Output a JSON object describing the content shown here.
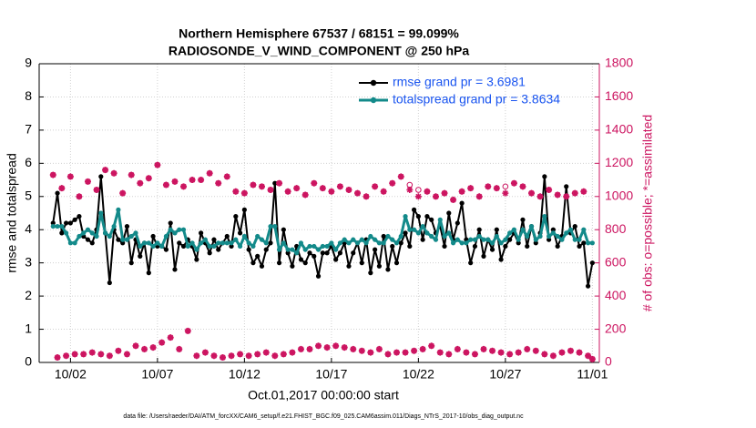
{
  "chart_data": {
    "type": "line",
    "title": "Northern Hemisphere 67537 / 68151 = 99.099%",
    "subtitle": "RADIOSONDE_V_WIND_COMPONENT @ 250 hPa",
    "xlabel": "Oct.01,2017 00:00:00 start",
    "ylabel": "rmse and totalspread",
    "y2label": "# of obs: o=possible; *=assimilated",
    "footnote": "data file: /Users/raeder/DAI/ATM_forcXX/CAM6_setup/f.e21.FHIST_BGC.f09_025.CAM6assim.011/Diags_NTrS_2017-10/obs_diag_output.nc",
    "xlim": [
      -0.8,
      31.4
    ],
    "xticks": [
      {
        "value": 1,
        "label": "10/02"
      },
      {
        "value": 6,
        "label": "10/07"
      },
      {
        "value": 11,
        "label": "10/12"
      },
      {
        "value": 16,
        "label": "10/17"
      },
      {
        "value": 21,
        "label": "10/22"
      },
      {
        "value": 26,
        "label": "10/27"
      },
      {
        "value": 31,
        "label": "11/01"
      }
    ],
    "ylim": [
      0,
      9
    ],
    "yticks": [
      0,
      1,
      2,
      3,
      4,
      5,
      6,
      7,
      8,
      9
    ],
    "y2lim": [
      0,
      1800
    ],
    "y2ticks": [
      0,
      200,
      400,
      600,
      800,
      1000,
      1200,
      1400,
      1600,
      1800
    ],
    "y2color": "#cc1460",
    "grid": true,
    "legend": "upper right",
    "x": [
      0,
      0.25,
      0.5,
      0.75,
      1,
      1.25,
      1.5,
      1.75,
      2,
      2.25,
      2.5,
      2.75,
      3,
      3.25,
      3.5,
      3.75,
      4,
      4.25,
      4.5,
      4.75,
      5,
      5.25,
      5.5,
      5.75,
      6,
      6.25,
      6.5,
      6.75,
      7,
      7.25,
      7.5,
      7.75,
      8,
      8.25,
      8.5,
      8.75,
      9,
      9.25,
      9.5,
      9.75,
      10,
      10.25,
      10.5,
      10.75,
      11,
      11.25,
      11.5,
      11.75,
      12,
      12.25,
      12.5,
      12.75,
      13,
      13.25,
      13.5,
      13.75,
      14,
      14.25,
      14.5,
      14.75,
      15,
      15.25,
      15.5,
      15.75,
      16,
      16.25,
      16.5,
      16.75,
      17,
      17.25,
      17.5,
      17.75,
      18,
      18.25,
      18.5,
      18.75,
      19,
      19.25,
      19.5,
      19.75,
      20,
      20.25,
      20.5,
      20.75,
      21,
      21.25,
      21.5,
      21.75,
      22,
      22.25,
      22.5,
      22.75,
      23,
      23.25,
      23.5,
      23.75,
      24,
      24.25,
      24.5,
      24.75,
      25,
      25.25,
      25.5,
      25.75,
      26,
      26.25,
      26.5,
      26.75,
      27,
      27.25,
      27.5,
      27.75,
      28,
      28.25,
      28.5,
      28.75,
      29,
      29.25,
      29.5,
      29.75,
      30,
      30.25,
      30.5,
      30.75,
      31
    ],
    "series": [
      {
        "name": "rmse grand pr = 3.6981",
        "color": "#000000",
        "marker": "dot",
        "legend_color": "#1a55f0",
        "values": [
          4.2,
          5.1,
          3.9,
          4.2,
          4.2,
          4.3,
          4.4,
          3.8,
          3.7,
          3.6,
          4.0,
          5.6,
          3.9,
          2.4,
          4.0,
          3.7,
          3.6,
          4.1,
          3.0,
          3.7,
          3.2,
          3.6,
          2.7,
          3.8,
          3.5,
          3.5,
          3.4,
          4.2,
          2.8,
          3.6,
          3.5,
          3.7,
          3.5,
          3.1,
          3.9,
          3.6,
          3.3,
          3.7,
          3.4,
          3.6,
          3.8,
          3.5,
          4.4,
          3.9,
          4.6,
          3.4,
          3.0,
          3.2,
          2.9,
          3.4,
          3.6,
          5.4,
          3.0,
          4.0,
          3.3,
          2.9,
          3.5,
          3.1,
          3.0,
          3.3,
          3.2,
          2.6,
          3.3,
          3.3,
          3.5,
          3.1,
          3.3,
          3.6,
          2.9,
          3.3,
          3.6,
          3.0,
          3.7,
          2.7,
          3.4,
          2.9,
          3.8,
          2.8,
          3.5,
          3.0,
          3.6,
          3.9,
          3.5,
          4.6,
          4.4,
          3.7,
          4.4,
          4.3,
          3.9,
          4.1,
          3.5,
          4.5,
          3.7,
          4.2,
          4.8,
          3.7,
          3.0,
          3.5,
          4.0,
          3.2,
          3.7,
          3.4,
          4.0,
          3.1,
          3.5,
          3.7,
          3.9,
          3.6,
          4.3,
          3.5,
          4.1,
          3.6,
          3.9,
          5.6,
          3.7,
          4.0,
          3.5,
          3.8,
          5.3,
          3.9,
          4.1,
          3.5,
          3.6,
          2.3,
          3.0
        ]
      },
      {
        "name": "totalspread grand pr = 3.8634",
        "color": "#138a8a",
        "marker": "dot",
        "legend_color": "#1a55f0",
        "values": [
          4.1,
          4.1,
          4.1,
          3.9,
          3.6,
          3.6,
          3.8,
          3.9,
          4.0,
          3.9,
          3.8,
          4.5,
          3.9,
          3.8,
          4.1,
          4.6,
          3.7,
          3.7,
          3.8,
          3.9,
          3.5,
          3.6,
          3.6,
          3.5,
          3.6,
          3.5,
          3.8,
          4.0,
          3.9,
          4.0,
          4.0,
          3.5,
          3.6,
          3.4,
          3.6,
          3.7,
          3.5,
          3.5,
          3.6,
          3.6,
          3.6,
          3.6,
          3.7,
          3.5,
          3.8,
          3.6,
          3.5,
          3.8,
          3.7,
          3.6,
          4.1,
          4.1,
          3.4,
          3.6,
          3.4,
          3.4,
          3.3,
          3.6,
          3.4,
          3.5,
          3.5,
          3.4,
          3.5,
          3.5,
          3.6,
          3.4,
          3.6,
          3.7,
          3.6,
          3.7,
          3.6,
          3.7,
          3.6,
          3.8,
          3.7,
          3.6,
          3.6,
          3.8,
          3.7,
          3.6,
          3.8,
          4.4,
          4.0,
          4.0,
          3.9,
          4.1,
          3.9,
          3.8,
          3.7,
          4.3,
          3.8,
          3.9,
          3.6,
          3.7,
          3.6,
          3.6,
          3.7,
          3.7,
          3.8,
          3.7,
          3.7,
          3.6,
          3.8,
          3.6,
          3.7,
          3.9,
          4.0,
          3.7,
          4.0,
          3.8,
          4.1,
          3.7,
          3.8,
          4.4,
          3.8,
          3.9,
          3.8,
          3.7,
          3.9,
          4.0,
          3.7,
          3.7,
          4.0,
          3.6,
          3.6
        ]
      },
      {
        "color": "#cc1460",
        "marker": "o",
        "axis": "y2",
        "values": [
          1130,
          30,
          1050,
          40,
          1120,
          50,
          1000,
          50,
          1090,
          60,
          1040,
          50,
          1160,
          40,
          1140,
          70,
          1020,
          50,
          1130,
          100,
          1080,
          80,
          1110,
          90,
          1190,
          120,
          1070,
          150,
          1090,
          80,
          1060,
          190,
          1100,
          40,
          1100,
          60,
          1140,
          40,
          1080,
          30,
          1120,
          40,
          1030,
          50,
          1020,
          40,
          1070,
          50,
          1060,
          60,
          1040,
          40,
          1080,
          50,
          1030,
          60,
          1050,
          80,
          1010,
          80,
          1080,
          100,
          1050,
          90,
          1030,
          100,
          1060,
          90,
          1040,
          80,
          1020,
          70,
          1000,
          60,
          1060,
          80,
          1030,
          50,
          1080,
          60,
          1120,
          60,
          1070,
          70,
          1040,
          80,
          1030,
          100,
          1000,
          60,
          1020,
          50,
          980,
          80,
          1030,
          60,
          1050,
          50,
          1000,
          80,
          1060,
          70,
          1050,
          60,
          1060,
          50,
          1080,
          60,
          1060,
          80,
          1020,
          70,
          1000,
          50,
          1040,
          40,
          1010,
          60,
          1000,
          70,
          1020,
          60,
          1030,
          40,
          20
        ]
      },
      {
        "color": "#cc1460",
        "marker": "star",
        "axis": "y2",
        "values": [
          1130,
          30,
          1050,
          40,
          1120,
          50,
          1000,
          50,
          1090,
          60,
          1040,
          50,
          1160,
          40,
          1140,
          70,
          1020,
          50,
          1130,
          100,
          1080,
          80,
          1110,
          90,
          1190,
          120,
          1070,
          150,
          1090,
          80,
          1060,
          190,
          1100,
          40,
          1100,
          60,
          1140,
          40,
          1080,
          30,
          1120,
          40,
          1030,
          50,
          1020,
          40,
          1070,
          50,
          1060,
          60,
          1040,
          40,
          1080,
          50,
          1030,
          60,
          1050,
          80,
          1010,
          80,
          1080,
          100,
          1050,
          90,
          1030,
          100,
          1060,
          90,
          1040,
          80,
          1020,
          70,
          1000,
          60,
          1060,
          80,
          1030,
          50,
          1080,
          60,
          1120,
          60,
          1040,
          70,
          1000,
          80,
          1030,
          100,
          1000,
          60,
          1020,
          50,
          980,
          80,
          1030,
          60,
          1050,
          50,
          1000,
          80,
          1060,
          70,
          1050,
          60,
          1020,
          50,
          1080,
          60,
          1060,
          80,
          1020,
          70,
          1000,
          50,
          1040,
          40,
          1010,
          60,
          1000,
          70,
          1020,
          60,
          1030,
          40,
          20
        ]
      }
    ]
  }
}
